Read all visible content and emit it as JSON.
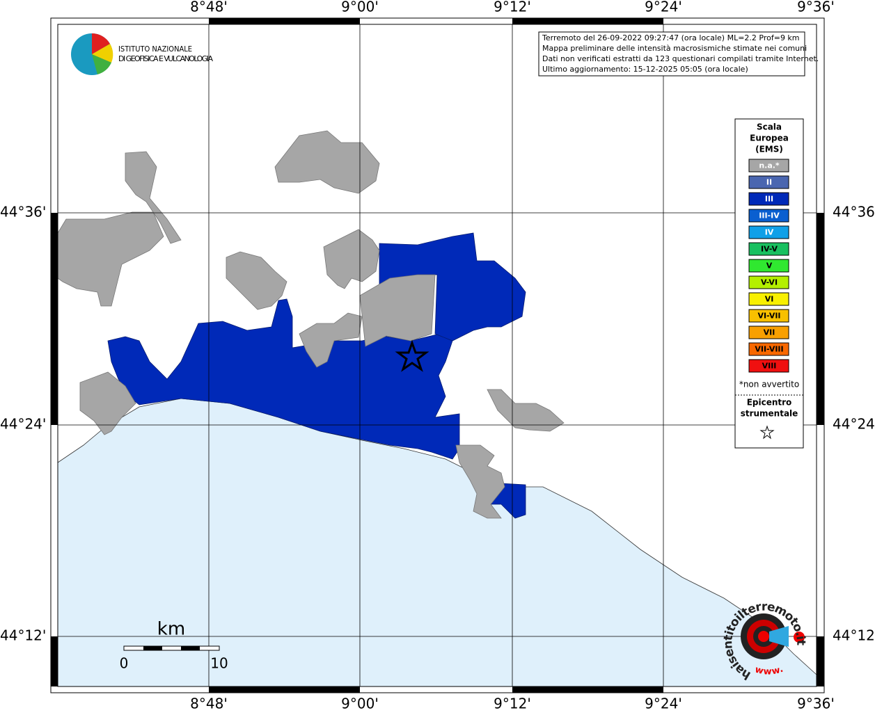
{
  "logo": {
    "line1": "ISTITUTO NAZIONALE",
    "line2": "DI GEOFISICA E VULCANOLOGIA"
  },
  "info": [
    "Terremoto del 26-09-2022 09:27:47 (ora locale) ML=2.2 Prof=9 km",
    "Mappa preliminare delle intensità macrosismiche stimate nei comuni",
    "Dati non verificati estratti da 123 questionari compilati tramite Internet.",
    "Ultimo aggiornamento: 15-12-2025 05:05 (ora locale)"
  ],
  "lon_labels": [
    "8°48'",
    "9°00'",
    "9°12'",
    "9°24'",
    "9°36'"
  ],
  "lat_labels": [
    "44°36'",
    "44°24'",
    "44°12'"
  ],
  "legend": {
    "title": [
      "Scala",
      "Europea",
      "(EMS)"
    ],
    "items": [
      {
        "label": "n.a.*",
        "color": "#a6a6a6",
        "text_color": "#ffffff"
      },
      {
        "label": "II",
        "color": "#4a66b0",
        "text_color": "#ffffff"
      },
      {
        "label": "III",
        "color": "#0029b8",
        "text_color": "#ffffff"
      },
      {
        "label": "III-IV",
        "color": "#0a5fd0",
        "text_color": "#ffffff"
      },
      {
        "label": "IV",
        "color": "#10a0e8",
        "text_color": "#ffffff"
      },
      {
        "label": "IV-V",
        "color": "#18c060",
        "text_color": "#000000"
      },
      {
        "label": "V",
        "color": "#30e830",
        "text_color": "#000000"
      },
      {
        "label": "V-VI",
        "color": "#b4f000",
        "text_color": "#000000"
      },
      {
        "label": "VI",
        "color": "#f8f000",
        "text_color": "#000000"
      },
      {
        "label": "VI-VII",
        "color": "#f8c000",
        "text_color": "#000000"
      },
      {
        "label": "VII",
        "color": "#f8a000",
        "text_color": "#000000"
      },
      {
        "label": "VII-VIII",
        "color": "#f86800",
        "text_color": "#000000"
      },
      {
        "label": "VIII",
        "color": "#f01010",
        "text_color": "#000000"
      }
    ],
    "note": "*non avvertito",
    "epicenter": [
      "Epicentro",
      "strumentale"
    ]
  },
  "scalebar": {
    "unit": "km",
    "labels": [
      "0",
      "10"
    ]
  },
  "badge": {
    "text": "haisentitoilterremoto.it",
    "prefix": "www."
  }
}
